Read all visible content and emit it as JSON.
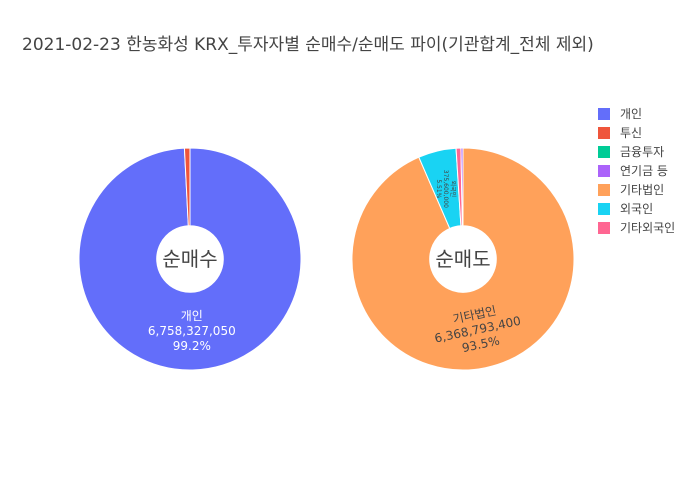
{
  "chart_data": {
    "type": "pie",
    "title": "2021-02-23 한농화성 KRX_투자자별 순매수/순매도 파이(기관합계_전체 제외)",
    "legend": {
      "placement": "top-right",
      "items": [
        {
          "name": "개인",
          "color": "#636efa"
        },
        {
          "name": "투신",
          "color": "#ef553b"
        },
        {
          "name": "금융투자",
          "color": "#00cc96"
        },
        {
          "name": "연기금 등",
          "color": "#ab63fa"
        },
        {
          "name": "기타법인",
          "color": "#ffa15a"
        },
        {
          "name": "외국인",
          "color": "#19d3f3"
        },
        {
          "name": "기타외국인",
          "color": "#ff6692"
        }
      ]
    },
    "pies": [
      {
        "center_label": "순매수",
        "hole": 0.3,
        "slices": [
          {
            "name": "개인",
            "value": 6758327050,
            "value_text": "6,758,327,050",
            "percent_text": "99.2%",
            "color": "#636efa",
            "show_label": true
          },
          {
            "name": "투신",
            "value": 54520000,
            "color": "#ef553b",
            "show_label": false
          }
        ]
      },
      {
        "center_label": "순매도",
        "hole": 0.3,
        "slices": [
          {
            "name": "기타법인",
            "value": 6368793400,
            "value_text": "6,368,793,400",
            "percent_text": "93.5%",
            "color": "#ffa15a",
            "show_label": true
          },
          {
            "name": "외국인",
            "value": 375600000,
            "value_text": "375,600,000",
            "percent_text": "5.51%",
            "color": "#19d3f3",
            "show_label": true,
            "small_label": true
          },
          {
            "name": "기타외국인",
            "value": 47700000,
            "color": "#ff6692",
            "show_label": false
          },
          {
            "name": "연기금 등",
            "value": 20400000,
            "color": "#ab63fa",
            "show_label": false
          }
        ]
      }
    ]
  }
}
